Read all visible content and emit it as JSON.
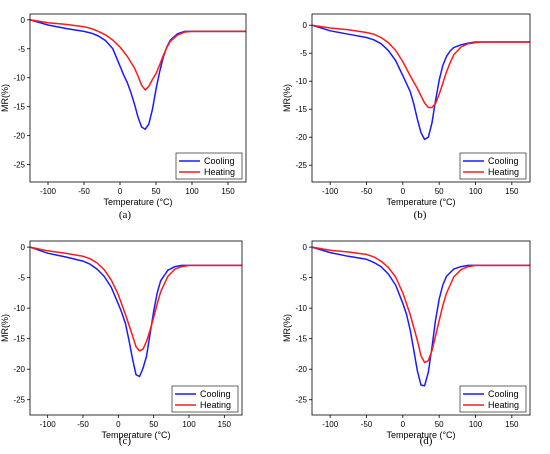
{
  "colors": {
    "cooling": "#1a1aff",
    "heating": "#ff1a1a",
    "axis": "#000000"
  },
  "chart_data": [
    {
      "type": "line",
      "label": "(a)",
      "xlabel": "Temperature (°C)",
      "ylabel": "MR(%)",
      "xlim": [
        -125,
        175
      ],
      "ylim": [
        -28,
        1
      ],
      "xticks": [
        -100,
        -50,
        0,
        50,
        100,
        150
      ],
      "yticks": [
        0,
        -5,
        -10,
        -15,
        -20,
        -25
      ],
      "legend_position": "bottom-right",
      "series": [
        {
          "name": "Cooling",
          "color": "#1a1aff",
          "x": [
            -125,
            -100,
            -75,
            -50,
            -40,
            -30,
            -20,
            -10,
            0,
            5,
            10,
            15,
            20,
            25,
            30,
            35,
            40,
            45,
            50,
            55,
            60,
            65,
            70,
            80,
            90,
            100,
            125,
            150,
            175
          ],
          "y": [
            0,
            -0.9,
            -1.5,
            -2.0,
            -2.3,
            -2.8,
            -3.6,
            -5.0,
            -8.0,
            -9.5,
            -10.8,
            -12.5,
            -14.5,
            -16.8,
            -18.5,
            -18.9,
            -18.0,
            -15.5,
            -12.0,
            -9.0,
            -6.5,
            -4.7,
            -3.5,
            -2.4,
            -2.0,
            -2.0,
            -2.0,
            -2.0,
            -2.0
          ]
        },
        {
          "name": "Heating",
          "color": "#ff1a1a",
          "x": [
            -125,
            -100,
            -75,
            -50,
            -40,
            -30,
            -20,
            -10,
            0,
            10,
            20,
            25,
            30,
            35,
            40,
            45,
            50,
            55,
            60,
            65,
            70,
            80,
            90,
            100,
            125,
            150,
            175
          ],
          "y": [
            0,
            -0.5,
            -0.8,
            -1.2,
            -1.5,
            -2.0,
            -2.6,
            -3.5,
            -4.7,
            -6.3,
            -8.3,
            -9.7,
            -11.3,
            -12.1,
            -11.5,
            -10.3,
            -9.3,
            -7.8,
            -6.2,
            -4.8,
            -3.7,
            -2.6,
            -2.1,
            -2.0,
            -2.0,
            -2.0,
            -2.0
          ]
        }
      ]
    },
    {
      "type": "line",
      "label": "(b)",
      "xlabel": "Temperature (°C)",
      "ylabel": "MR(%)",
      "xlim": [
        -125,
        175
      ],
      "ylim": [
        -28,
        2
      ],
      "xticks": [
        -100,
        -50,
        0,
        50,
        100,
        150
      ],
      "yticks": [
        0,
        -5,
        -10,
        -15,
        -20,
        -25
      ],
      "legend_position": "bottom-right",
      "series": [
        {
          "name": "Cooling",
          "color": "#1a1aff",
          "x": [
            -125,
            -100,
            -75,
            -50,
            -40,
            -30,
            -20,
            -10,
            0,
            10,
            15,
            20,
            25,
            30,
            35,
            40,
            45,
            50,
            55,
            60,
            65,
            70,
            80,
            90,
            100,
            110,
            125,
            150,
            175
          ],
          "y": [
            0,
            -1.0,
            -1.6,
            -2.2,
            -2.6,
            -3.3,
            -4.5,
            -6.3,
            -9.0,
            -11.8,
            -14.0,
            -16.8,
            -19.2,
            -20.4,
            -20.0,
            -17.5,
            -13.5,
            -9.8,
            -7.2,
            -5.6,
            -4.6,
            -4.0,
            -3.5,
            -3.2,
            -3.0,
            -3.0,
            -3.0,
            -3.0,
            -3.0
          ]
        },
        {
          "name": "Heating",
          "color": "#ff1a1a",
          "x": [
            -125,
            -100,
            -75,
            -50,
            -40,
            -30,
            -20,
            -10,
            0,
            10,
            20,
            25,
            30,
            35,
            40,
            45,
            50,
            55,
            60,
            65,
            70,
            80,
            90,
            100,
            110,
            125,
            150,
            175
          ],
          "y": [
            0,
            -0.5,
            -0.8,
            -1.3,
            -1.6,
            -2.2,
            -3.1,
            -4.5,
            -6.5,
            -9.0,
            -11.3,
            -12.6,
            -13.9,
            -14.7,
            -14.7,
            -14.0,
            -12.3,
            -10.4,
            -8.4,
            -6.7,
            -5.3,
            -3.9,
            -3.3,
            -3.1,
            -3.0,
            -3.0,
            -3.0,
            -3.0
          ]
        }
      ]
    },
    {
      "type": "line",
      "label": "(c)",
      "xlabel": "Temperature (°C)",
      "ylabel": "MR(%)",
      "xlim": [
        -125,
        175
      ],
      "ylim": [
        -27.5,
        1
      ],
      "xticks": [
        -100,
        -50,
        0,
        50,
        100,
        150
      ],
      "yticks": [
        0,
        -5,
        -10,
        -15,
        -20,
        -25
      ],
      "legend_position": "bottom-right",
      "series": [
        {
          "name": "Cooling",
          "color": "#1a1aff",
          "x": [
            -125,
            -100,
            -75,
            -50,
            -40,
            -30,
            -20,
            -10,
            0,
            5,
            10,
            15,
            20,
            25,
            30,
            35,
            40,
            45,
            50,
            55,
            60,
            70,
            80,
            90,
            100,
            125,
            150,
            175
          ],
          "y": [
            0,
            -1.0,
            -1.6,
            -2.3,
            -2.8,
            -3.6,
            -4.8,
            -6.6,
            -9.3,
            -10.8,
            -12.5,
            -15.2,
            -18.3,
            -20.9,
            -21.2,
            -19.8,
            -17.8,
            -14.2,
            -10.5,
            -7.5,
            -5.5,
            -3.8,
            -3.2,
            -3.0,
            -3.0,
            -3.0,
            -3.0,
            -3.0
          ]
        },
        {
          "name": "Heating",
          "color": "#ff1a1a",
          "x": [
            -125,
            -100,
            -75,
            -50,
            -40,
            -30,
            -20,
            -10,
            0,
            10,
            20,
            25,
            30,
            35,
            40,
            45,
            50,
            55,
            60,
            70,
            80,
            90,
            100,
            110,
            125,
            150,
            175
          ],
          "y": [
            0,
            -0.6,
            -1.0,
            -1.5,
            -1.9,
            -2.6,
            -3.7,
            -5.4,
            -7.8,
            -11.0,
            -14.5,
            -16.3,
            -17.0,
            -16.7,
            -15.4,
            -13.6,
            -11.5,
            -9.3,
            -7.3,
            -4.8,
            -3.6,
            -3.2,
            -3.0,
            -3.0,
            -3.0,
            -3.0,
            -3.0
          ]
        }
      ]
    },
    {
      "type": "line",
      "label": "(d)",
      "xlabel": "Temperature (°C)",
      "ylabel": "MR(%)",
      "xlim": [
        -125,
        175
      ],
      "ylim": [
        -27.5,
        1
      ],
      "xticks": [
        -100,
        -50,
        0,
        50,
        100,
        150
      ],
      "yticks": [
        0,
        -5,
        -10,
        -15,
        -20,
        -25
      ],
      "legend_position": "bottom-right",
      "series": [
        {
          "name": "Cooling",
          "color": "#1a1aff",
          "x": [
            -125,
            -100,
            -75,
            -50,
            -40,
            -30,
            -20,
            -10,
            0,
            5,
            10,
            15,
            20,
            25,
            30,
            35,
            40,
            45,
            50,
            55,
            60,
            70,
            80,
            90,
            100,
            125,
            150,
            175
          ],
          "y": [
            0,
            -0.9,
            -1.5,
            -2.0,
            -2.5,
            -3.2,
            -4.4,
            -6.2,
            -9.2,
            -11.0,
            -13.5,
            -16.8,
            -20.3,
            -22.6,
            -22.7,
            -20.5,
            -16.5,
            -12.0,
            -8.5,
            -6.2,
            -4.8,
            -3.6,
            -3.2,
            -3.0,
            -3.0,
            -3.0,
            -3.0,
            -3.0
          ]
        },
        {
          "name": "Heating",
          "color": "#ff1a1a",
          "x": [
            -125,
            -100,
            -75,
            -50,
            -40,
            -30,
            -20,
            -10,
            0,
            10,
            20,
            25,
            30,
            35,
            40,
            45,
            50,
            55,
            60,
            70,
            80,
            90,
            100,
            110,
            125,
            150,
            175
          ],
          "y": [
            0,
            -0.5,
            -0.8,
            -1.2,
            -1.6,
            -2.3,
            -3.3,
            -4.9,
            -7.5,
            -11.0,
            -15.3,
            -17.8,
            -18.9,
            -18.6,
            -17.0,
            -14.6,
            -12.0,
            -9.6,
            -7.6,
            -4.9,
            -3.7,
            -3.2,
            -3.0,
            -3.0,
            -3.0,
            -3.0,
            -3.0
          ]
        }
      ]
    }
  ]
}
